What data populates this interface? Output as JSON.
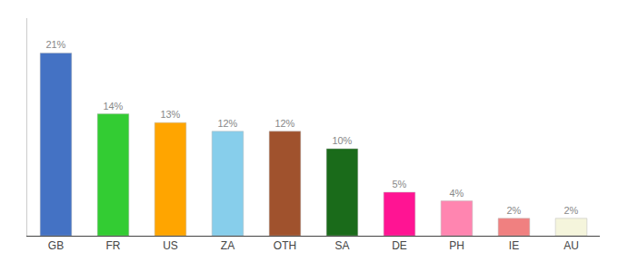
{
  "chart_data": {
    "type": "bar",
    "categories": [
      "GB",
      "FR",
      "US",
      "ZA",
      "OTH",
      "SA",
      "DE",
      "PH",
      "IE",
      "AU"
    ],
    "values": [
      21,
      14,
      13,
      12,
      12,
      10,
      5,
      4,
      2,
      2
    ],
    "value_labels": [
      "21%",
      "14%",
      "13%",
      "12%",
      "12%",
      "10%",
      "5%",
      "4%",
      "2%",
      "2%"
    ],
    "data_labels": true,
    "colors": [
      "#4472C4",
      "#33CC33",
      "#FFA500",
      "#87CEEB",
      "#A0522D",
      "#1A6B1A",
      "#FF1493",
      "#FF85B0",
      "#F08080",
      "#F5F5DC"
    ],
    "ylim": [
      0,
      25
    ],
    "grid": false,
    "tick_labels": "x"
  }
}
